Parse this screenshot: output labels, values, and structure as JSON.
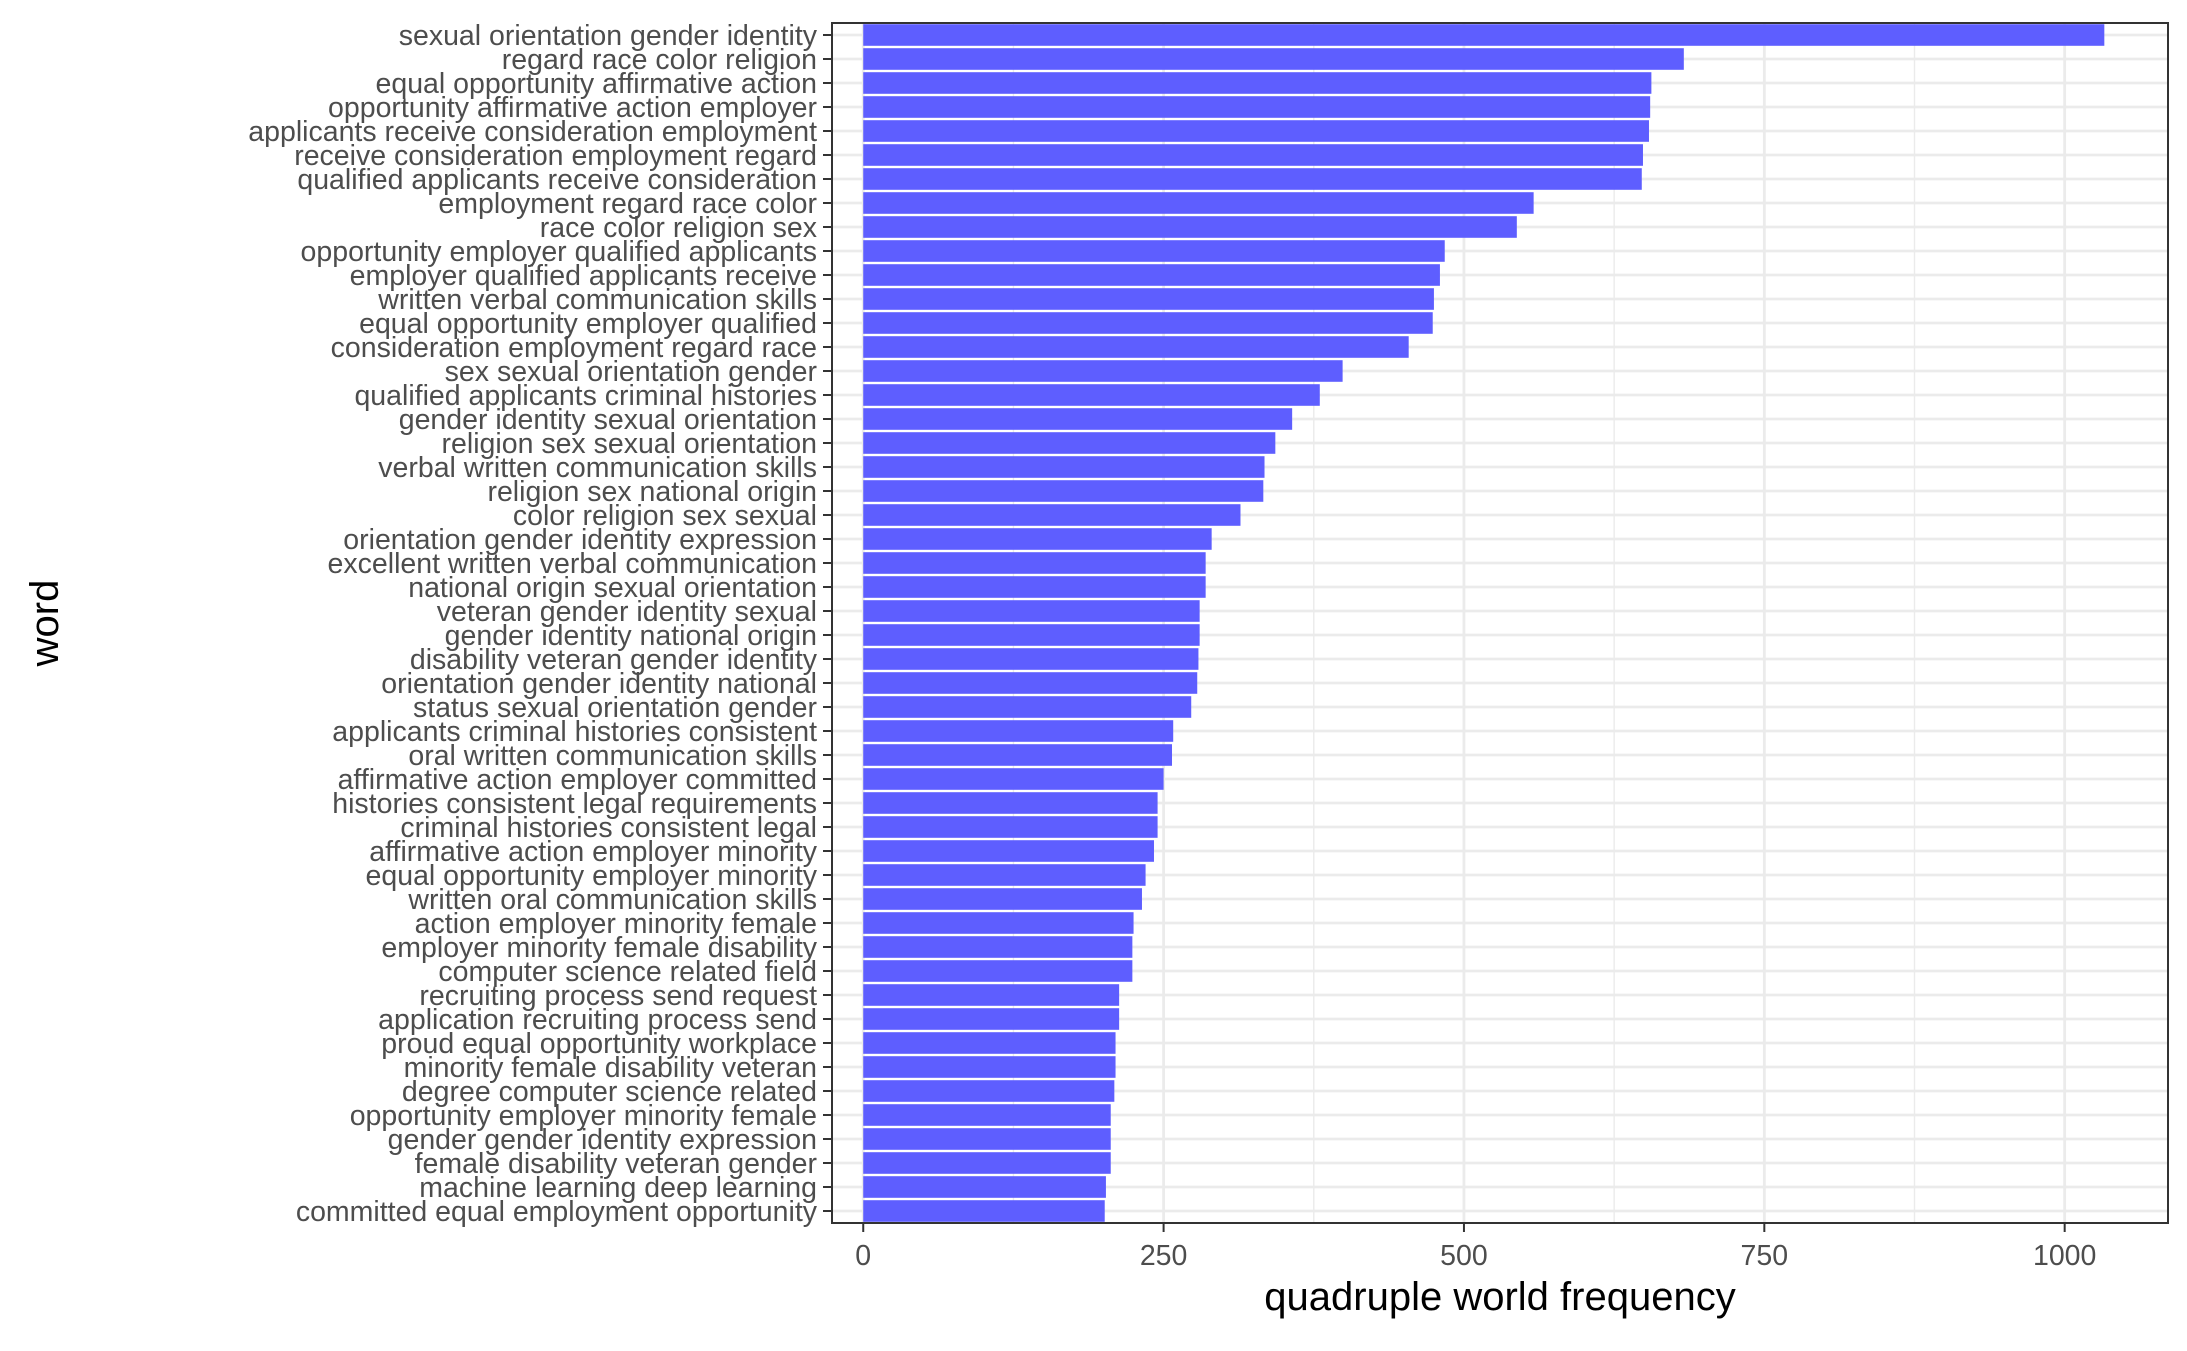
{
  "chart_data": {
    "type": "bar",
    "orientation": "horizontal",
    "xlabel": "quadruple world frequency",
    "ylabel": "word",
    "xlim": [
      -26,
      1086
    ],
    "x_ticks": [
      0,
      250,
      500,
      750,
      1000
    ],
    "grid": true,
    "bar_color": "#5959FF",
    "categories": [
      "sexual orientation gender identity",
      "regard race color religion",
      "equal opportunity affirmative action",
      "opportunity affirmative action employer",
      "applicants receive consideration employment",
      "receive consideration employment regard",
      "qualified applicants receive consideration",
      "employment regard race color",
      "race color religion sex",
      "opportunity employer qualified applicants",
      "employer qualified applicants receive",
      "written verbal communication skills",
      "equal opportunity employer qualified",
      "consideration employment regard race",
      "sex sexual orientation gender",
      "qualified applicants criminal histories",
      "gender identity sexual orientation",
      "religion sex sexual orientation",
      "verbal written communication skills",
      "religion sex national origin",
      "color religion sex sexual",
      "orientation gender identity expression",
      "excellent written verbal communication",
      "national origin sexual orientation",
      "veteran gender identity sexual",
      "gender identity national origin",
      "disability veteran gender identity",
      "orientation gender identity national",
      "status sexual orientation gender",
      "applicants criminal histories consistent",
      "oral written communication skills",
      "affirmative action employer committed",
      "histories consistent legal requirements",
      "criminal histories consistent legal",
      "affirmative action employer minority",
      "equal opportunity employer minority",
      "written oral communication skills",
      "action employer minority female",
      "employer minority female disability",
      "computer science related field",
      "recruiting process send request",
      "application recruiting process send",
      "proud equal opportunity workplace",
      "minority female disability veteran",
      "degree computer science related",
      "opportunity employer minority female",
      "gender gender identity expression",
      "female disability veteran gender",
      "machine learning deep learning",
      "committed equal employment opportunity"
    ],
    "values": [
      1033,
      683,
      656,
      655,
      654,
      649,
      648,
      558,
      544,
      484,
      480,
      475,
      474,
      454,
      399,
      380,
      357,
      343,
      334,
      333,
      314,
      290,
      285,
      285,
      280,
      280,
      279,
      278,
      273,
      258,
      257,
      250,
      245,
      245,
      242,
      235,
      232,
      225,
      224,
      224,
      213,
      213,
      210,
      210,
      209,
      206,
      206,
      206,
      202,
      201
    ]
  }
}
